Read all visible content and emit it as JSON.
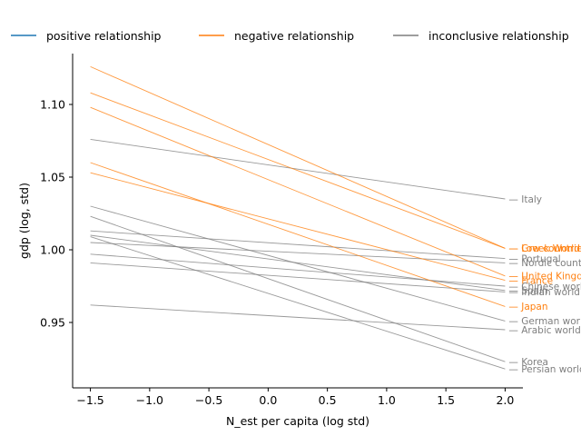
{
  "chart_data": {
    "type": "line",
    "title": "",
    "xlabel": "N_est per capita (log std)",
    "ylabel": "gdp (log, std)",
    "xlim": [
      -1.65,
      2.15
    ],
    "ylim": [
      0.905,
      1.135
    ],
    "xticks": [
      -1.5,
      -1.0,
      -0.5,
      0.0,
      0.5,
      1.0,
      1.5,
      2.0
    ],
    "xtick_labels": [
      "−1.5",
      "−1.0",
      "−0.5",
      "0.0",
      "0.5",
      "1.0",
      "1.5",
      "2.0"
    ],
    "yticks": [
      0.95,
      1.0,
      1.05,
      1.1
    ],
    "ytick_labels": [
      "0.95",
      "1.00",
      "1.05",
      "1.10"
    ],
    "grid": false,
    "legend_position": "top",
    "colors": {
      "positive relationship": "#1f77b4",
      "negative relationship": "#ff7f0e",
      "inconclusive relationship": "#7f7f7f"
    },
    "legend": [
      "positive relationship",
      "negative relationship",
      "inconclusive relationship"
    ],
    "series": [
      {
        "name": "Italy",
        "category": "inconclusive relationship",
        "x": [
          -1.5,
          2.0
        ],
        "y": [
          1.076,
          1.035
        ]
      },
      {
        "name": "Greek World",
        "category": "negative relationship",
        "x": [
          -1.5,
          2.0
        ],
        "y": [
          1.126,
          1.001
        ]
      },
      {
        "name": "Low countries",
        "category": "negative relationship",
        "x": [
          -1.5,
          2.0
        ],
        "y": [
          1.108,
          1.001
        ]
      },
      {
        "name": "Portugal",
        "category": "inconclusive relationship",
        "x": [
          -1.5,
          2.0
        ],
        "y": [
          1.013,
          0.994
        ]
      },
      {
        "name": "Nordic countries",
        "category": "inconclusive relationship",
        "x": [
          -1.5,
          2.0
        ],
        "y": [
          1.005,
          0.991
        ]
      },
      {
        "name": "United Kingdom",
        "category": "negative relationship",
        "x": [
          -1.5,
          2.0
        ],
        "y": [
          1.098,
          0.982
        ]
      },
      {
        "name": "France",
        "category": "negative relationship",
        "x": [
          -1.5,
          2.0
        ],
        "y": [
          1.053,
          0.979
        ]
      },
      {
        "name": "Chinese world",
        "category": "inconclusive relationship",
        "x": [
          -1.5,
          2.0
        ],
        "y": [
          0.997,
          0.975
        ]
      },
      {
        "name": "Spain",
        "category": "inconclusive relationship",
        "x": [
          -1.5,
          2.0
        ],
        "y": [
          1.01,
          0.972
        ]
      },
      {
        "name": "Indian world",
        "category": "inconclusive relationship",
        "x": [
          -1.5,
          2.0
        ],
        "y": [
          0.991,
          0.971
        ]
      },
      {
        "name": "Japan",
        "category": "negative relationship",
        "x": [
          -1.5,
          2.0
        ],
        "y": [
          1.06,
          0.961
        ]
      },
      {
        "name": "German world",
        "category": "inconclusive relationship",
        "x": [
          -1.5,
          2.0
        ],
        "y": [
          1.03,
          0.951
        ]
      },
      {
        "name": "Arabic world",
        "category": "inconclusive relationship",
        "x": [
          -1.5,
          2.0
        ],
        "y": [
          0.962,
          0.945
        ]
      },
      {
        "name": "Korea",
        "category": "inconclusive relationship",
        "x": [
          -1.5,
          2.0
        ],
        "y": [
          1.023,
          0.923
        ]
      },
      {
        "name": "Persian world",
        "category": "inconclusive relationship",
        "x": [
          -1.5,
          2.0
        ],
        "y": [
          1.009,
          0.918
        ]
      }
    ]
  }
}
